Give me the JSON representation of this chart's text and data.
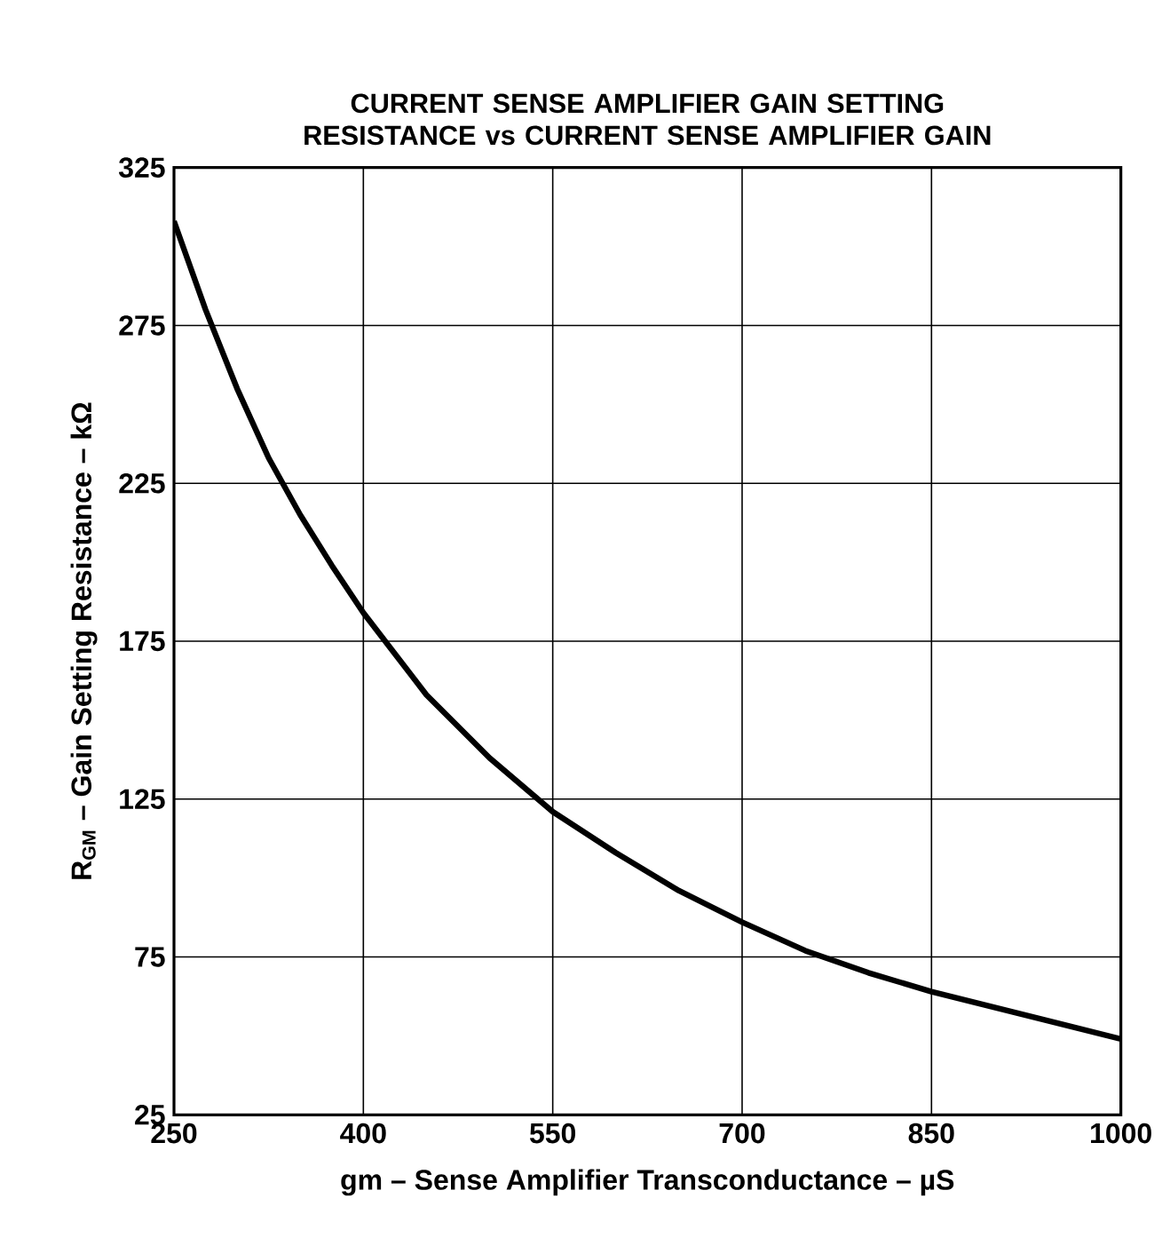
{
  "chart_data": {
    "type": "line",
    "title": "CURRENT SENSE AMPLIFIER GAIN SETTING RESISTANCE vs CURRENT SENSE AMPLIFIER GAIN",
    "xlabel": "gm – Sense Amplifier Transconductance – µS",
    "ylabel": "R$_{GM}$ – Gain Setting Resistance – kΩ",
    "x": [
      250,
      275,
      300,
      325,
      350,
      375,
      400,
      425,
      450,
      500,
      550,
      600,
      650,
      700,
      750,
      800,
      850,
      900,
      950,
      1000
    ],
    "series": [
      {
        "color": "#000000",
        "values": [
          308,
          280,
          255,
          233,
          215,
          199,
          184,
          171,
          158,
          138,
          121,
          108,
          96,
          86,
          77,
          70,
          64,
          59,
          54,
          49
        ]
      }
    ],
    "xlim": [
      250,
      1000
    ],
    "ylim": [
      25,
      325
    ],
    "xticks": [
      250,
      400,
      550,
      700,
      850,
      1000
    ],
    "yticks": [
      25,
      75,
      125,
      175,
      225,
      275,
      325
    ],
    "grid": true,
    "marker": "none",
    "line_style": "solid"
  }
}
